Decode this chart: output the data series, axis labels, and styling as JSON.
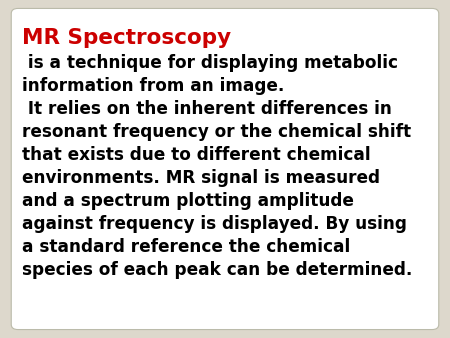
{
  "title": "MR Spectroscopy",
  "title_color": "#cc0000",
  "body_color": "#000000",
  "background_color": "#ddd8cc",
  "card_color": "#ffffff",
  "lines": [
    " is a technique for displaying metabolic",
    "information from an image.",
    " It relies on the inherent differences in",
    "resonant frequency or the chemical shift",
    "that exists due to different chemical",
    "environments. MR signal is measured",
    "and a spectrum plotting amplitude",
    "against frequency is displayed. By using",
    "a standard reference the chemical",
    "species of each peak can be determined."
  ],
  "font_size_title": 15.5,
  "font_size_body": 12.2,
  "font_family": "DejaVu Sans"
}
